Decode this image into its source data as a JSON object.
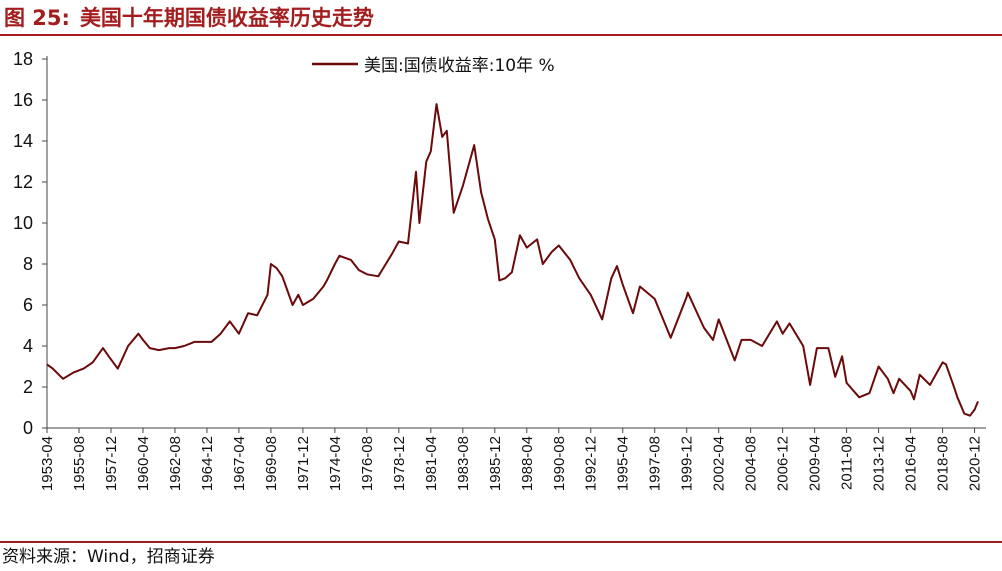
{
  "figure": {
    "number": "图 25:",
    "title": "美国十年期国债收益率历史走势",
    "source": "资料来源：Wind，招商证券"
  },
  "colors": {
    "accent": "#a31d1f",
    "series": "#6b0a0a"
  },
  "chart_data": {
    "type": "line",
    "title": "美国十年期国债收益率历史走势",
    "xlabel": "",
    "ylabel": "",
    "ylim": [
      0,
      18
    ],
    "yticks": [
      0,
      2,
      4,
      6,
      8,
      10,
      12,
      14,
      16,
      18
    ],
    "xtick_labels": [
      "1953-04",
      "1955-08",
      "1957-12",
      "1960-04",
      "1962-08",
      "1964-12",
      "1967-04",
      "1969-08",
      "1971-12",
      "1974-04",
      "1976-08",
      "1978-12",
      "1981-04",
      "1983-08",
      "1985-12",
      "1988-04",
      "1990-08",
      "1992-12",
      "1995-04",
      "1997-08",
      "1999-12",
      "2002-04",
      "2004-08",
      "2006-12",
      "2009-04",
      "2011-08",
      "2013-12",
      "2016-04",
      "2018-08",
      "2020-12"
    ],
    "grid": false,
    "legend": "top-center",
    "series": [
      {
        "name": "美国:国债收益率:10年 %",
        "x": [
          "1953-04",
          "1953-09",
          "1954-06",
          "1955-03",
          "1955-12",
          "1956-08",
          "1957-05",
          "1957-10",
          "1958-06",
          "1959-03",
          "1959-12",
          "1960-04",
          "1960-10",
          "1961-06",
          "1962-03",
          "1962-08",
          "1963-04",
          "1964-01",
          "1964-08",
          "1965-04",
          "1965-12",
          "1966-08",
          "1967-04",
          "1967-12",
          "1968-08",
          "1969-05",
          "1969-08",
          "1970-01",
          "1970-06",
          "1971-03",
          "1971-08",
          "1971-12",
          "1972-09",
          "1973-06",
          "1973-09",
          "1974-04",
          "1974-08",
          "1975-06",
          "1976-01",
          "1976-08",
          "1977-06",
          "1978-06",
          "1978-12",
          "1979-08",
          "1980-03",
          "1980-06",
          "1980-12",
          "1981-04",
          "1981-09",
          "1982-02",
          "1982-06",
          "1982-12",
          "1983-08",
          "1984-06",
          "1984-12",
          "1985-06",
          "1985-12",
          "1986-04",
          "1986-09",
          "1987-03",
          "1987-10",
          "1988-04",
          "1989-01",
          "1989-06",
          "1990-02",
          "1990-08",
          "1991-06",
          "1992-02",
          "1992-12",
          "1993-10",
          "1994-06",
          "1994-11",
          "1995-04",
          "1996-01",
          "1996-07",
          "1997-08",
          "1998-10",
          "1999-12",
          "2000-01",
          "2001-03",
          "2001-11",
          "2002-04",
          "2003-06",
          "2003-12",
          "2004-08",
          "2005-06",
          "2006-07",
          "2006-12",
          "2007-06",
          "2008-06",
          "2008-12",
          "2009-06",
          "2010-04",
          "2010-10",
          "2011-04",
          "2011-08",
          "2012-07",
          "2013-04",
          "2013-12",
          "2014-08",
          "2015-01",
          "2015-06",
          "2016-04",
          "2016-07",
          "2016-12",
          "2017-09",
          "2018-08",
          "2018-11",
          "2019-06",
          "2019-09",
          "2020-03",
          "2020-08",
          "2020-12",
          "2021-03"
        ],
        "values": [
          3.1,
          2.9,
          2.4,
          2.7,
          2.9,
          3.2,
          3.9,
          3.5,
          2.9,
          4.0,
          4.6,
          4.3,
          3.9,
          3.8,
          3.9,
          3.9,
          4.0,
          4.2,
          4.2,
          4.2,
          4.6,
          5.2,
          4.6,
          5.6,
          5.5,
          6.5,
          8.0,
          7.8,
          7.4,
          6.0,
          6.5,
          6.0,
          6.3,
          6.9,
          7.2,
          8.0,
          8.4,
          8.2,
          7.7,
          7.5,
          7.4,
          8.5,
          9.1,
          9.0,
          12.5,
          10.0,
          13.0,
          13.5,
          15.8,
          14.2,
          14.5,
          10.5,
          11.8,
          13.8,
          11.5,
          10.2,
          9.2,
          7.2,
          7.3,
          7.6,
          9.4,
          8.8,
          9.2,
          8.0,
          8.6,
          8.9,
          8.2,
          7.3,
          6.5,
          5.3,
          7.3,
          7.9,
          7.0,
          5.6,
          6.9,
          6.3,
          4.4,
          6.4,
          6.6,
          4.9,
          4.3,
          5.3,
          3.3,
          4.3,
          4.3,
          4.0,
          5.2,
          4.6,
          5.1,
          4.0,
          2.1,
          3.9,
          3.9,
          2.5,
          3.5,
          2.2,
          1.5,
          1.7,
          3.0,
          2.4,
          1.7,
          2.4,
          1.8,
          1.4,
          2.6,
          2.1,
          3.2,
          3.1,
          2.0,
          1.5,
          0.7,
          0.6,
          0.9,
          1.3
        ]
      }
    ]
  }
}
